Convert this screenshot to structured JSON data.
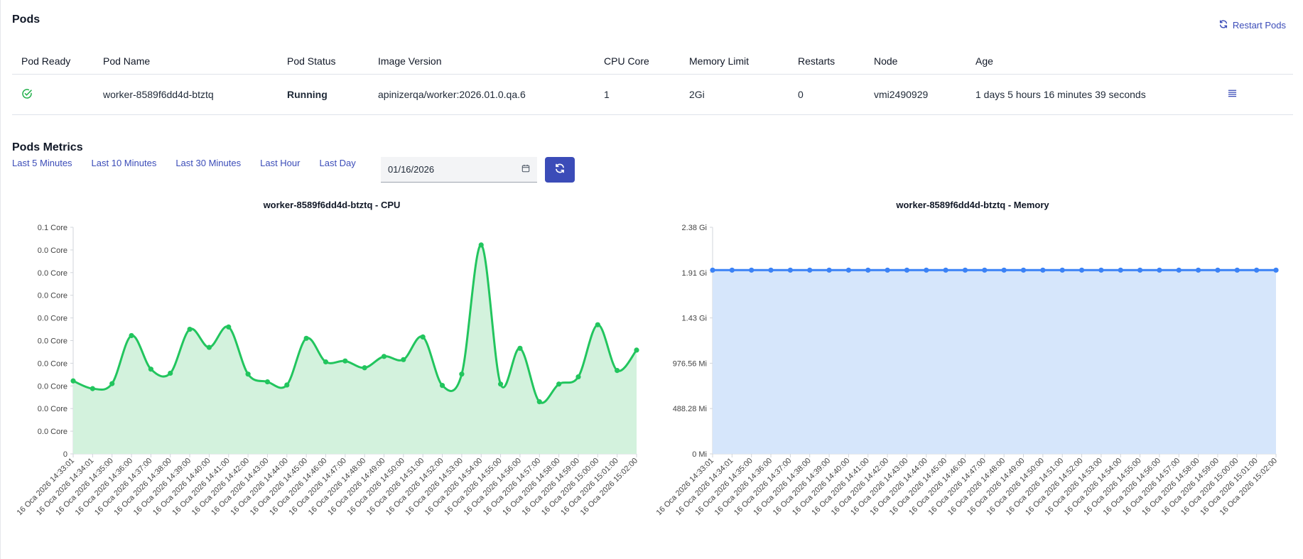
{
  "pods": {
    "title": "Pods",
    "restart_label": "Restart Pods",
    "columns": [
      "Pod Ready",
      "Pod Name",
      "Pod Status",
      "Image Version",
      "CPU Core",
      "Memory Limit",
      "Restarts",
      "Node",
      "Age"
    ],
    "row": {
      "pod_name": "worker-8589f6dd4d-btztq",
      "status": "Running",
      "image_version": "apinizerqa/worker:2026.01.0.qa.6",
      "cpu_core": "1",
      "memory_limit": "2Gi",
      "restarts": "0",
      "node": "vmi2490929",
      "age": "1 days 5 hours 16 minutes 39 seconds"
    }
  },
  "metrics": {
    "title": "Pods Metrics",
    "ranges": [
      "Last 5 Minutes",
      "Last 10 Minutes",
      "Last 30 Minutes",
      "Last Hour",
      "Last Day"
    ],
    "date_value": "01/16/2026"
  },
  "colors": {
    "accent": "#3b4cb8",
    "running": "#22b04b",
    "cpu_line": "#22c55e",
    "cpu_fill": "#d3f2dd",
    "mem_line": "#3b82f6",
    "mem_fill": "#d6e6fb"
  },
  "chart_data": [
    {
      "type": "area",
      "title": "worker-8589f6dd4d-btztq - CPU",
      "y_ticks": [
        "0.1 Core",
        "0.0 Core",
        "0.0 Core",
        "0.0 Core",
        "0.0 Core",
        "0.0 Core",
        "0.0 Core",
        "0.0 Core",
        "0.0 Core",
        "0.0 Core",
        "0"
      ],
      "ylim": [
        0,
        0.1
      ],
      "x": [
        "16 Oca 2026 14:33:01",
        "16 Oca 2026 14:34:01",
        "16 Oca 2026 14:35:00",
        "16 Oca 2026 14:36:00",
        "16 Oca 2026 14:37:00",
        "16 Oca 2026 14:38:00",
        "16 Oca 2026 14:39:00",
        "16 Oca 2026 14:40:00",
        "16 Oca 2026 14:41:00",
        "16 Oca 2026 14:42:00",
        "16 Oca 2026 14:43:00",
        "16 Oca 2026 14:44:00",
        "16 Oca 2026 14:45:00",
        "16 Oca 2026 14:46:00",
        "16 Oca 2026 14:47:00",
        "16 Oca 2026 14:48:00",
        "16 Oca 2026 14:49:00",
        "16 Oca 2026 14:50:00",
        "16 Oca 2026 14:51:00",
        "16 Oca 2026 14:52:00",
        "16 Oca 2026 14:53:00",
        "16 Oca 2026 14:54:00",
        "16 Oca 2026 14:55:00",
        "16 Oca 2026 14:56:00",
        "16 Oca 2026 14:57:00",
        "16 Oca 2026 14:58:00",
        "16 Oca 2026 14:59:00",
        "16 Oca 2026 15:00:00",
        "16 Oca 2026 15:01:00",
        "16 Oca 2026 15:02:00"
      ],
      "values": [
        0.0322,
        0.0288,
        0.031,
        0.0522,
        0.0374,
        0.0356,
        0.055,
        0.047,
        0.056,
        0.0352,
        0.0318,
        0.0304,
        0.051,
        0.0406,
        0.041,
        0.038,
        0.043,
        0.0416,
        0.0516,
        0.0302,
        0.0352,
        0.0922,
        0.0308,
        0.0466,
        0.023,
        0.0308,
        0.034,
        0.057,
        0.0368,
        0.0458
      ]
    },
    {
      "type": "area",
      "title": "worker-8589f6dd4d-btztq - Memory",
      "y_ticks": [
        "2.38 Gi",
        "1.91 Gi",
        "1.43 Gi",
        "976.56 Mi",
        "488.28 Mi",
        "0 Mi"
      ],
      "unit": "Mi",
      "ylim": [
        0,
        2441.4
      ],
      "x": [
        "16 Oca 2026 14:33:01",
        "16 Oca 2026 14:34:01",
        "16 Oca 2026 14:35:00",
        "16 Oca 2026 14:36:00",
        "16 Oca 2026 14:37:00",
        "16 Oca 2026 14:38:00",
        "16 Oca 2026 14:39:00",
        "16 Oca 2026 14:40:00",
        "16 Oca 2026 14:41:00",
        "16 Oca 2026 14:42:00",
        "16 Oca 2026 14:43:00",
        "16 Oca 2026 14:44:00",
        "16 Oca 2026 14:45:00",
        "16 Oca 2026 14:46:00",
        "16 Oca 2026 14:47:00",
        "16 Oca 2026 14:48:00",
        "16 Oca 2026 14:49:00",
        "16 Oca 2026 14:50:00",
        "16 Oca 2026 14:51:00",
        "16 Oca 2026 14:52:00",
        "16 Oca 2026 14:53:00",
        "16 Oca 2026 14:54:00",
        "16 Oca 2026 14:55:00",
        "16 Oca 2026 14:56:00",
        "16 Oca 2026 14:57:00",
        "16 Oca 2026 14:58:00",
        "16 Oca 2026 14:59:00",
        "16 Oca 2026 15:00:00",
        "16 Oca 2026 15:01:00",
        "16 Oca 2026 15:02:00"
      ],
      "values": [
        1980,
        1980,
        1980,
        1980,
        1980,
        1980,
        1980,
        1980,
        1980,
        1980,
        1980,
        1980,
        1980,
        1980,
        1980,
        1980,
        1980,
        1980,
        1980,
        1980,
        1980,
        1980,
        1980,
        1980,
        1980,
        1980,
        1980,
        1980,
        1980,
        1980
      ]
    }
  ]
}
